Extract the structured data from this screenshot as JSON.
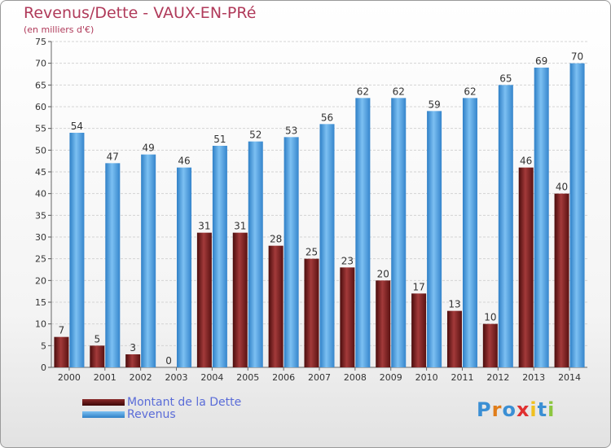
{
  "header": {
    "title": "Revenus/Dette - VAUX-EN-PRé",
    "subtitle": "(en milliers d'€)"
  },
  "legend": {
    "items": [
      {
        "label": "Montant de la Dette",
        "color": "#6b1a1a"
      },
      {
        "label": "Revenus",
        "color": "#3d93d9"
      }
    ]
  },
  "branding": {
    "logo_letters": [
      "P",
      "r",
      "o",
      "x",
      "i",
      "t",
      "i"
    ],
    "logo_colors": [
      "#3b8fd4",
      "#e07d1a",
      "#3b8fd4",
      "#e03030",
      "#f0c020",
      "#3b8fd4",
      "#8cc63f"
    ]
  },
  "chart_data": {
    "type": "bar",
    "categories": [
      "2000",
      "2001",
      "2002",
      "2003",
      "2004",
      "2005",
      "2006",
      "2007",
      "2008",
      "2009",
      "2010",
      "2011",
      "2012",
      "2013",
      "2014"
    ],
    "series": [
      {
        "name": "Montant de la Dette",
        "values": [
          7,
          5,
          3,
          0,
          31,
          31,
          28,
          25,
          23,
          20,
          17,
          13,
          10,
          46,
          40
        ],
        "color": "#7a1f1f"
      },
      {
        "name": "Revenus",
        "values": [
          54,
          47,
          49,
          46,
          51,
          52,
          53,
          56,
          62,
          62,
          59,
          62,
          65,
          69,
          70
        ],
        "color": "#4a9fe0"
      }
    ],
    "ylim": [
      0,
      75
    ],
    "yticks": [
      0,
      5,
      10,
      15,
      20,
      25,
      30,
      35,
      40,
      45,
      50,
      55,
      60,
      65,
      70,
      75
    ],
    "grid": true
  }
}
